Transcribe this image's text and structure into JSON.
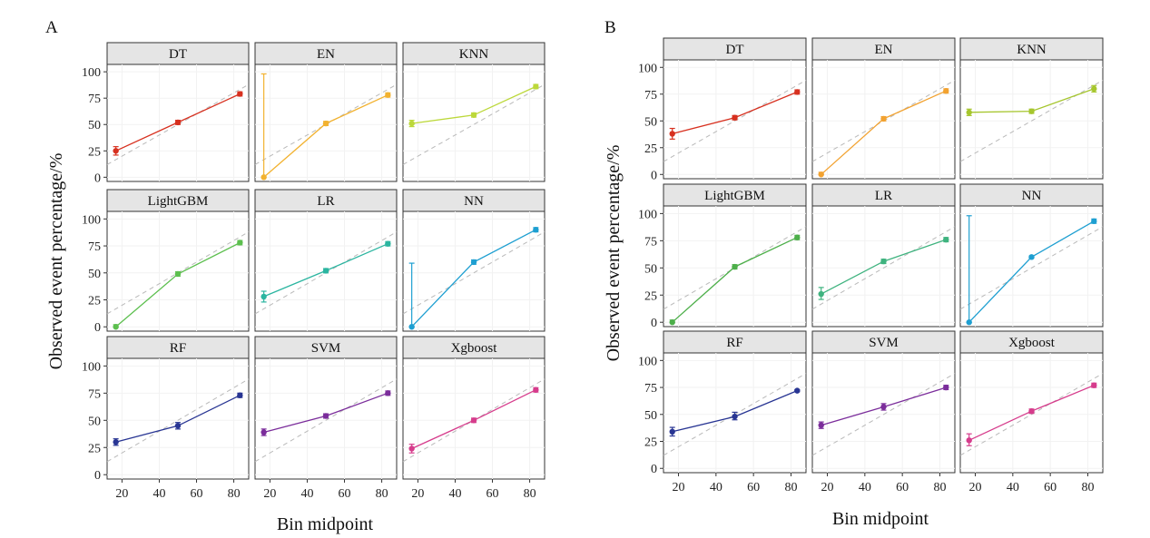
{
  "chart_data": [
    {
      "label": "A",
      "type": "line",
      "xlabel": "Bin midpoint",
      "ylabel": "Observed event percentage/%",
      "x_ticks": [
        "20",
        "40",
        "60",
        "80"
      ],
      "y_ticks": [
        "0",
        "25",
        "50",
        "75",
        "100"
      ],
      "xlim": [
        12,
        88
      ],
      "ylim": [
        -4,
        107
      ],
      "grid": true,
      "reference_line": "dashed diagonal",
      "facets": [
        {
          "name": "DT",
          "color": "#d7301f",
          "x": [
            16.7,
            50,
            83.3
          ],
          "y": [
            25,
            52,
            79
          ],
          "lo": [
            21,
            50,
            77
          ],
          "hi": [
            29,
            54,
            81
          ]
        },
        {
          "name": "EN",
          "color": "#f2b230",
          "x": [
            16.7,
            50,
            83.3
          ],
          "y": [
            0,
            51,
            78
          ],
          "lo": [
            0,
            49,
            76
          ],
          "hi": [
            98,
            53,
            80
          ]
        },
        {
          "name": "KNN",
          "color": "#bcd83a",
          "x": [
            16.7,
            50,
            83.3
          ],
          "y": [
            51,
            59,
            86
          ],
          "lo": [
            48,
            57,
            84
          ],
          "hi": [
            54,
            61,
            88
          ]
        },
        {
          "name": "LightGBM",
          "color": "#5cbf4e",
          "x": [
            16.7,
            50,
            83.3
          ],
          "y": [
            0,
            49,
            78
          ],
          "lo": [
            0,
            47,
            76
          ],
          "hi": [
            2,
            51,
            80
          ]
        },
        {
          "name": "LR",
          "color": "#2bb5a0",
          "x": [
            16.7,
            50,
            83.3
          ],
          "y": [
            28,
            52,
            77
          ],
          "lo": [
            23,
            50,
            75
          ],
          "hi": [
            33,
            54,
            79
          ]
        },
        {
          "name": "NN",
          "color": "#1e9fd1",
          "x": [
            16.7,
            50,
            83.3
          ],
          "y": [
            0,
            60,
            90
          ],
          "lo": [
            0,
            58,
            88
          ],
          "hi": [
            59,
            62,
            92
          ]
        },
        {
          "name": "RF",
          "color": "#283593",
          "x": [
            16.7,
            50,
            83.3
          ],
          "y": [
            30,
            45,
            73
          ],
          "lo": [
            27,
            42,
            71
          ],
          "hi": [
            33,
            48,
            75
          ]
        },
        {
          "name": "SVM",
          "color": "#7b2d9b",
          "x": [
            16.7,
            50,
            83.3
          ],
          "y": [
            39,
            54,
            75
          ],
          "lo": [
            36,
            52,
            73
          ],
          "hi": [
            42,
            56,
            77
          ]
        },
        {
          "name": "Xgboost",
          "color": "#d63c8c",
          "x": [
            16.7,
            50,
            83.3
          ],
          "y": [
            24,
            50,
            78
          ],
          "lo": [
            20,
            48,
            76
          ],
          "hi": [
            28,
            52,
            80
          ]
        }
      ]
    },
    {
      "label": "B",
      "type": "line",
      "xlabel": "Bin midpoint",
      "ylabel": "Observed event percentage/%",
      "x_ticks": [
        "20",
        "40",
        "60",
        "80"
      ],
      "y_ticks": [
        "0",
        "25",
        "50",
        "75",
        "100"
      ],
      "xlim": [
        12,
        88
      ],
      "ylim": [
        -4,
        107
      ],
      "grid": true,
      "reference_line": "dashed diagonal",
      "facets": [
        {
          "name": "DT",
          "color": "#d7301f",
          "x": [
            16.7,
            50,
            83.3
          ],
          "y": [
            38,
            53,
            77
          ],
          "lo": [
            33,
            51,
            75
          ],
          "hi": [
            43,
            55,
            79
          ]
        },
        {
          "name": "EN",
          "color": "#f2a230",
          "x": [
            16.7,
            50,
            83.3
          ],
          "y": [
            0,
            52,
            78
          ],
          "lo": [
            0,
            50,
            76
          ],
          "hi": [
            2,
            54,
            80
          ]
        },
        {
          "name": "KNN",
          "color": "#a6c62e",
          "x": [
            16.7,
            50,
            83.3
          ],
          "y": [
            58,
            59,
            80
          ],
          "lo": [
            55,
            57,
            77
          ],
          "hi": [
            61,
            61,
            83
          ]
        },
        {
          "name": "LightGBM",
          "color": "#4daf4a",
          "x": [
            16.7,
            50,
            83.3
          ],
          "y": [
            0,
            51,
            78
          ],
          "lo": [
            0,
            49,
            76
          ],
          "hi": [
            2,
            53,
            80
          ]
        },
        {
          "name": "LR",
          "color": "#3fb37f",
          "x": [
            16.7,
            50,
            83.3
          ],
          "y": [
            26,
            56,
            76
          ],
          "lo": [
            21,
            54,
            74
          ],
          "hi": [
            32,
            58,
            78
          ]
        },
        {
          "name": "NN",
          "color": "#1e9fd1",
          "x": [
            16.7,
            50,
            83.3
          ],
          "y": [
            0,
            60,
            93
          ],
          "lo": [
            0,
            59,
            91
          ],
          "hi": [
            98,
            61,
            95
          ]
        },
        {
          "name": "RF",
          "color": "#283593",
          "x": [
            16.7,
            50,
            83.3
          ],
          "y": [
            34,
            48,
            72
          ],
          "lo": [
            30,
            45,
            71
          ],
          "hi": [
            38,
            52,
            73
          ]
        },
        {
          "name": "SVM",
          "color": "#7b2d9b",
          "x": [
            16.7,
            50,
            83.3
          ],
          "y": [
            40,
            57,
            75
          ],
          "lo": [
            37,
            54,
            73
          ],
          "hi": [
            43,
            60,
            77
          ]
        },
        {
          "name": "Xgboost",
          "color": "#d63c8c",
          "x": [
            16.7,
            50,
            83.3
          ],
          "y": [
            26,
            53,
            77
          ],
          "lo": [
            21,
            51,
            75
          ],
          "hi": [
            32,
            55,
            79
          ]
        }
      ]
    }
  ]
}
